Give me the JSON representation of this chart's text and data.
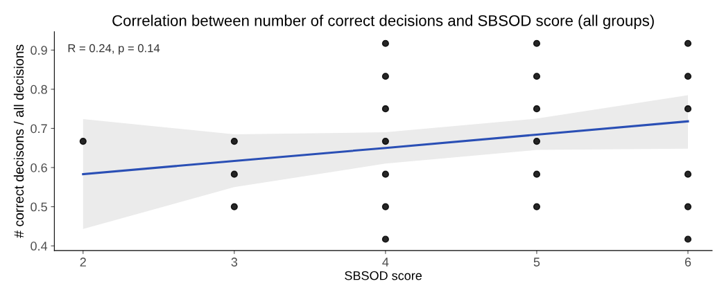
{
  "chart_data": {
    "type": "scatter",
    "title": "Correlation between number of correct decisions and SBSOD score (all groups)",
    "xlabel": "SBSOD score",
    "ylabel": "# correct decisons / all decisions",
    "annotations": [
      "R = 0.24, p = 0.14"
    ],
    "series": [
      {
        "color": "#000000",
        "marker": "circle",
        "x": [
          2,
          3,
          3,
          3,
          4,
          4,
          4,
          4,
          4,
          4,
          4,
          5,
          5,
          5,
          5,
          5,
          5,
          6,
          6,
          6,
          6,
          6,
          6
        ],
        "values": [
          0.667,
          0.667,
          0.583,
          0.5,
          0.917,
          0.833,
          0.75,
          0.667,
          0.583,
          0.5,
          0.417,
          0.917,
          0.833,
          0.75,
          0.667,
          0.583,
          0.5,
          0.917,
          0.833,
          0.75,
          0.583,
          0.5,
          0.417
        ]
      },
      {
        "type": "line",
        "color": "#2a4fb5",
        "x": [
          2,
          3,
          4,
          5,
          6
        ],
        "values": [
          0.583,
          0.617,
          0.65,
          0.684,
          0.718
        ],
        "lower": [
          0.443,
          0.55,
          0.61,
          0.645,
          0.648
        ],
        "upper": [
          0.724,
          0.685,
          0.69,
          0.725,
          0.785
        ]
      }
    ],
    "xlim": [
      1.81,
      6.16
    ],
    "ylim": [
      0.388,
      0.947
    ],
    "xticks": [
      2,
      3,
      4,
      5,
      6
    ],
    "yticks": [
      0.4,
      0.5,
      0.6,
      0.7,
      0.8,
      0.9
    ],
    "grid": false
  }
}
